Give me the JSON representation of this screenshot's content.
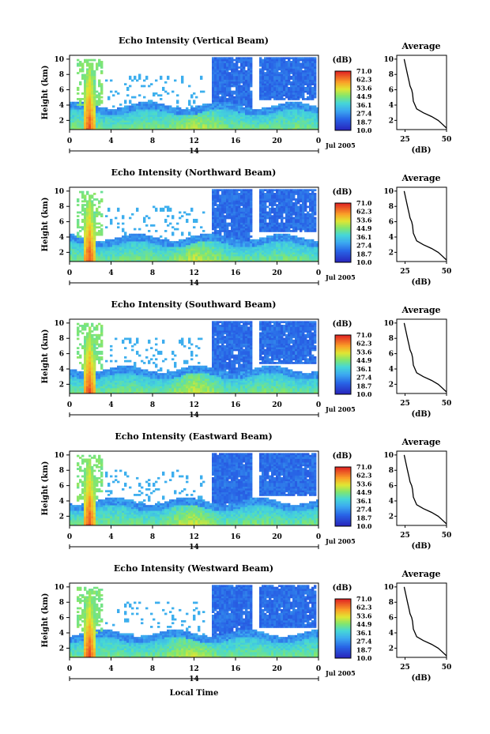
{
  "chart_data": [
    {
      "type": "heatmap",
      "title": "Echo Intensity (Vertical Beam)",
      "ylabel": "Height (km)",
      "xlim": [
        0,
        24
      ],
      "ylim": [
        0.8,
        10.5
      ],
      "x_ticks": [
        "0",
        "4",
        "8",
        "12",
        "16",
        "20",
        "0"
      ],
      "y_ticks": [
        "2",
        "4",
        "6",
        "8",
        "10"
      ],
      "date_label": "Jul 2005",
      "day_label": "14",
      "colorbar": {
        "unit": "(dB)",
        "labels": [
          "71.0",
          "62.3",
          "53.6",
          "44.9",
          "36.1",
          "27.4",
          "18.7",
          "10.0"
        ]
      },
      "average_profile": {
        "title": "Average",
        "xlabel": "(dB)",
        "xlim": [
          20,
          50
        ],
        "ylim": [
          0.8,
          10.5
        ],
        "x_ticks": [
          "25",
          "50"
        ],
        "y_ticks": [
          "2",
          "4",
          "6",
          "8",
          "10"
        ],
        "dB": [
          50,
          47,
          45,
          41,
          36,
          32,
          30,
          29.5,
          29,
          28,
          27.5,
          26.5,
          25.5,
          24.5
        ],
        "height_km": [
          1.0,
          1.6,
          2.0,
          2.5,
          3.0,
          3.5,
          4.5,
          5.5,
          6.0,
          6.5,
          7.0,
          8.0,
          9.0,
          10.0
        ]
      }
    },
    {
      "type": "heatmap",
      "title": "Echo Intensity (Northward Beam)",
      "ylabel": "Height (km)",
      "xlim": [
        0,
        24
      ],
      "ylim": [
        0.8,
        10.5
      ],
      "x_ticks": [
        "0",
        "4",
        "8",
        "12",
        "16",
        "20",
        "0"
      ],
      "y_ticks": [
        "2",
        "4",
        "6",
        "8",
        "10"
      ],
      "date_label": "Jul 2005",
      "day_label": "14",
      "colorbar": {
        "unit": "(dB)",
        "labels": [
          "71.0",
          "62.3",
          "53.6",
          "44.9",
          "36.1",
          "27.4",
          "18.7",
          "10.0"
        ]
      },
      "average_profile": {
        "title": "Average",
        "xlabel": "(dB)",
        "xlim": [
          20,
          50
        ],
        "ylim": [
          0.8,
          10.5
        ],
        "x_ticks": [
          "25",
          "50"
        ],
        "y_ticks": [
          "2",
          "4",
          "6",
          "8",
          "10"
        ],
        "dB": [
          50,
          47,
          45,
          41,
          36,
          32,
          30,
          29.5,
          29,
          28,
          27.5,
          26.5,
          25.5,
          24.5
        ],
        "height_km": [
          1.0,
          1.6,
          2.0,
          2.5,
          3.0,
          3.5,
          4.5,
          5.5,
          6.0,
          6.5,
          7.0,
          8.0,
          9.0,
          10.0
        ]
      }
    },
    {
      "type": "heatmap",
      "title": "Echo Intensity (Southward Beam)",
      "ylabel": "Height (km)",
      "xlim": [
        0,
        24
      ],
      "ylim": [
        0.8,
        10.5
      ],
      "x_ticks": [
        "0",
        "4",
        "8",
        "12",
        "16",
        "20",
        "0"
      ],
      "y_ticks": [
        "2",
        "4",
        "6",
        "8",
        "10"
      ],
      "date_label": "Jul 2005",
      "day_label": "14",
      "colorbar": {
        "unit": "(dB)",
        "labels": [
          "71.0",
          "62.3",
          "53.6",
          "44.9",
          "36.1",
          "27.4",
          "18.7",
          "10.0"
        ]
      },
      "average_profile": {
        "title": "Average",
        "xlabel": "(dB)",
        "xlim": [
          20,
          50
        ],
        "ylim": [
          0.8,
          10.5
        ],
        "x_ticks": [
          "25",
          "50"
        ],
        "y_ticks": [
          "2",
          "4",
          "6",
          "8",
          "10"
        ],
        "dB": [
          50,
          47,
          45,
          41,
          36,
          32,
          30,
          29.5,
          29,
          28,
          27.5,
          26.5,
          25.5,
          24.5
        ],
        "height_km": [
          1.0,
          1.6,
          2.0,
          2.5,
          3.0,
          3.5,
          4.5,
          5.5,
          6.0,
          6.5,
          7.0,
          8.0,
          9.0,
          10.0
        ]
      }
    },
    {
      "type": "heatmap",
      "title": "Echo Intensity (Eastward Beam)",
      "ylabel": "Height (km)",
      "xlim": [
        0,
        24
      ],
      "ylim": [
        0.8,
        10.5
      ],
      "x_ticks": [
        "0",
        "4",
        "8",
        "12",
        "16",
        "20",
        "0"
      ],
      "y_ticks": [
        "2",
        "4",
        "6",
        "8",
        "10"
      ],
      "date_label": "Jul 2005",
      "day_label": "14",
      "colorbar": {
        "unit": "(dB)",
        "labels": [
          "71.0",
          "62.3",
          "53.6",
          "44.9",
          "36.1",
          "27.4",
          "18.7",
          "10.0"
        ]
      },
      "average_profile": {
        "title": "Average",
        "xlabel": "(dB)",
        "xlim": [
          20,
          50
        ],
        "ylim": [
          0.8,
          10.5
        ],
        "x_ticks": [
          "25",
          "50"
        ],
        "y_ticks": [
          "2",
          "4",
          "6",
          "8",
          "10"
        ],
        "dB": [
          50,
          47,
          45,
          41,
          36,
          32,
          30,
          29.5,
          29,
          28,
          27.5,
          26.5,
          25.5,
          24.5
        ],
        "height_km": [
          1.0,
          1.6,
          2.0,
          2.5,
          3.0,
          3.5,
          4.5,
          5.5,
          6.0,
          6.5,
          7.0,
          8.0,
          9.0,
          10.0
        ]
      }
    },
    {
      "type": "heatmap",
      "title": "Echo Intensity (Westward Beam)",
      "ylabel": "Height (km)",
      "xlabel": "Local Time",
      "xlim": [
        0,
        24
      ],
      "ylim": [
        0.8,
        10.5
      ],
      "x_ticks": [
        "0",
        "4",
        "8",
        "12",
        "16",
        "20",
        "0"
      ],
      "y_ticks": [
        "2",
        "4",
        "6",
        "8",
        "10"
      ],
      "date_label": "Jul 2005",
      "day_label": "14",
      "colorbar": {
        "unit": "(dB)",
        "labels": [
          "71.0",
          "62.3",
          "53.6",
          "44.9",
          "36.1",
          "27.4",
          "18.7",
          "10.0"
        ]
      },
      "average_profile": {
        "title": "Average",
        "xlabel": "(dB)",
        "xlim": [
          20,
          50
        ],
        "ylim": [
          0.8,
          10.5
        ],
        "x_ticks": [
          "25",
          "50"
        ],
        "y_ticks": [
          "2",
          "4",
          "6",
          "8",
          "10"
        ],
        "dB": [
          50,
          47,
          45,
          41,
          36,
          32,
          30,
          29.5,
          29,
          28,
          27.5,
          26.5,
          25.5,
          24.5
        ],
        "height_km": [
          1.0,
          1.6,
          2.0,
          2.5,
          3.0,
          3.5,
          4.5,
          5.5,
          6.0,
          6.5,
          7.0,
          8.0,
          9.0,
          10.0
        ]
      }
    }
  ]
}
